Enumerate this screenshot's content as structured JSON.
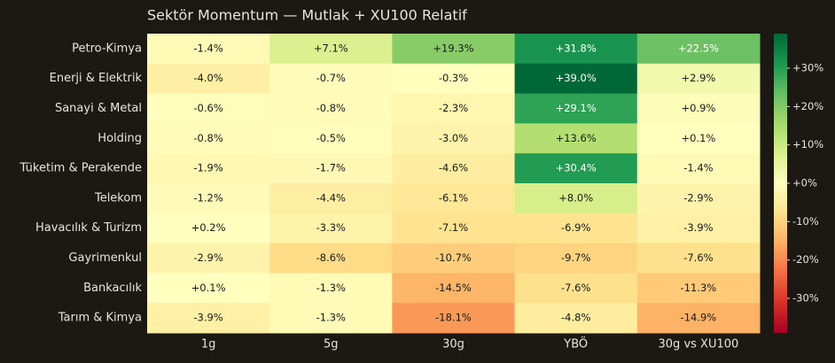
{
  "chart_data": {
    "type": "heatmap",
    "title": "Sektör Momentum — Mutlak + XU100 Relatif",
    "rows": [
      "Petro-Kimya",
      "Enerji & Elektrik",
      "Sanayi & Metal",
      "Holding",
      "Tüketim & Perakende",
      "Telekom",
      "Havacılık & Turizm",
      "Gayrimenkul",
      "Bankacılık",
      "Tarım & Kimya"
    ],
    "columns": [
      "1g",
      "5g",
      "30g",
      "YBÖ",
      "30g vs XU100"
    ],
    "values": [
      [
        -1.4,
        7.1,
        19.3,
        31.8,
        22.5
      ],
      [
        -4.0,
        -0.7,
        -0.3,
        39.0,
        2.9
      ],
      [
        -0.6,
        -0.8,
        -2.3,
        29.1,
        0.9
      ],
      [
        -0.8,
        -0.5,
        -3.0,
        13.6,
        0.1
      ],
      [
        -1.9,
        -1.7,
        -4.6,
        30.4,
        -1.4
      ],
      [
        -1.2,
        -4.4,
        -6.1,
        8.0,
        -2.9
      ],
      [
        0.2,
        -3.3,
        -7.1,
        -6.9,
        -3.9
      ],
      [
        -2.9,
        -8.6,
        -10.7,
        -9.7,
        -7.6
      ],
      [
        0.1,
        -1.3,
        -14.5,
        -7.6,
        -11.3
      ],
      [
        -3.9,
        -1.3,
        -18.1,
        -4.8,
        -14.9
      ]
    ],
    "value_labels": [
      [
        "-1.4%",
        "+7.1%",
        "+19.3%",
        "+31.8%",
        "+22.5%"
      ],
      [
        "-4.0%",
        "-0.7%",
        "-0.3%",
        "+39.0%",
        "+2.9%"
      ],
      [
        "-0.6%",
        "-0.8%",
        "-2.3%",
        "+29.1%",
        "+0.9%"
      ],
      [
        "-0.8%",
        "-0.5%",
        "-3.0%",
        "+13.6%",
        "+0.1%"
      ],
      [
        "-1.9%",
        "-1.7%",
        "-4.6%",
        "+30.4%",
        "-1.4%"
      ],
      [
        "-1.2%",
        "-4.4%",
        "-6.1%",
        "+8.0%",
        "-2.9%"
      ],
      [
        "+0.2%",
        "-3.3%",
        "-7.1%",
        "-6.9%",
        "-3.9%"
      ],
      [
        "-2.9%",
        "-8.6%",
        "-10.7%",
        "-9.7%",
        "-7.6%"
      ],
      [
        "+0.1%",
        "-1.3%",
        "-14.5%",
        "-7.6%",
        "-11.3%"
      ],
      [
        "-3.9%",
        "-1.3%",
        "-18.1%",
        "-4.8%",
        "-14.9%"
      ]
    ],
    "clim": [
      -39,
      39
    ],
    "colormap": [
      "#a50026",
      "#d73027",
      "#f46d43",
      "#fdae61",
      "#fee08b",
      "#ffffbf",
      "#d9ef8b",
      "#a6d96a",
      "#66bd63",
      "#1a9850",
      "#006837"
    ],
    "colorbar_ticks": [
      {
        "value": 30,
        "label": "+30%"
      },
      {
        "value": 20,
        "label": "+20%"
      },
      {
        "value": 10,
        "label": "+10%"
      },
      {
        "value": 0,
        "label": "+0%"
      },
      {
        "value": -10,
        "label": "-10%"
      },
      {
        "value": -20,
        "label": "-20%"
      },
      {
        "value": -30,
        "label": "-30%"
      }
    ]
  }
}
